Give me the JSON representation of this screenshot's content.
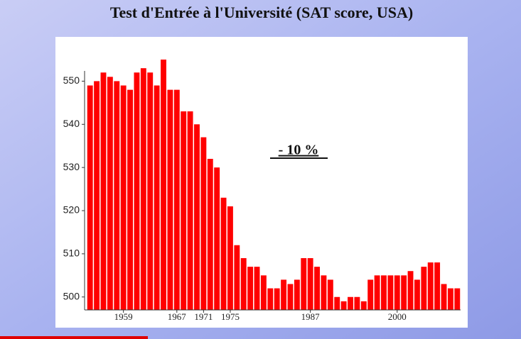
{
  "chart_data": {
    "type": "bar",
    "title": "Test d'Entrée à l'Université (SAT score, USA)",
    "annotation": "- 10 %",
    "x": [
      1954,
      1955,
      1956,
      1957,
      1958,
      1959,
      1960,
      1961,
      1962,
      1963,
      1964,
      1965,
      1966,
      1967,
      1968,
      1969,
      1970,
      1971,
      1972,
      1973,
      1974,
      1975,
      1976,
      1977,
      1978,
      1979,
      1980,
      1981,
      1982,
      1983,
      1984,
      1985,
      1986,
      1987,
      1988,
      1989,
      1990,
      1991,
      1992,
      1993,
      1994,
      1995,
      1996,
      1997,
      1998,
      1999,
      2000,
      2001,
      2002,
      2003,
      2004,
      2005,
      2006,
      2007,
      2008,
      2009
    ],
    "values": [
      549,
      550,
      552,
      551,
      550,
      549,
      548,
      552,
      553,
      552,
      549,
      555,
      548,
      548,
      543,
      543,
      540,
      537,
      532,
      530,
      523,
      521,
      512,
      509,
      507,
      507,
      505,
      502,
      502,
      504,
      503,
      504,
      509,
      509,
      507,
      505,
      504,
      500,
      499,
      500,
      500,
      499,
      504,
      505,
      505,
      505,
      505,
      505,
      506,
      504,
      507,
      508,
      508,
      503,
      502,
      502
    ],
    "color": "#ff0000",
    "xlim": [
      1953.5,
      2009.5
    ],
    "xticks": [
      1959,
      1967,
      1971,
      1975,
      1987,
      2000
    ],
    "ylim": [
      497,
      555
    ],
    "yticks": [
      500,
      510,
      520,
      530,
      540,
      550
    ]
  }
}
